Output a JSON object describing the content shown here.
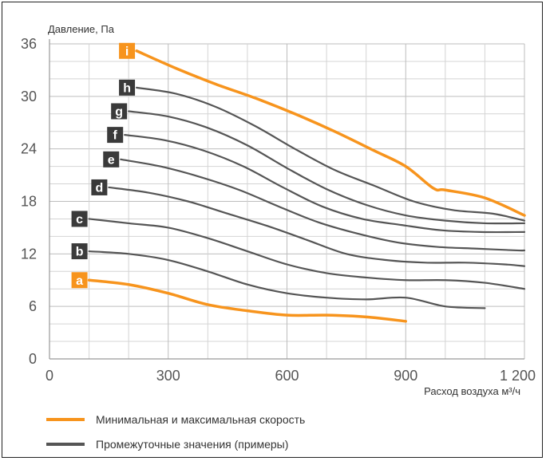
{
  "chart_data": {
    "type": "line",
    "ylabel": "Давление, Па",
    "xlabel": "Расход воздуха м³/ч",
    "xlim": [
      0,
      1200
    ],
    "ylim": [
      0,
      36
    ],
    "x_ticks": [
      0,
      300,
      600,
      900,
      1200
    ],
    "x_tick_labels": [
      "0",
      "300",
      "600",
      "900",
      "1 200"
    ],
    "y_ticks": [
      0,
      6,
      12,
      18,
      24,
      30,
      36
    ],
    "y_tick_labels": [
      "0",
      "6",
      "12",
      "18",
      "24",
      "30",
      "36"
    ],
    "grid": true,
    "legend_position": "bottom-left",
    "colors": {
      "extreme": "#f7941d",
      "intermediate": "#555555"
    },
    "series": [
      {
        "label": "a",
        "kind": "extreme",
        "x": [
          100,
          200,
          300,
          400,
          500,
          600,
          700,
          800,
          900
        ],
        "y": [
          9,
          8.5,
          7.5,
          6.2,
          5.5,
          5.0,
          5.0,
          4.8,
          4.3
        ]
      },
      {
        "label": "b",
        "kind": "intermediate",
        "x": [
          100,
          200,
          300,
          400,
          500,
          600,
          700,
          800,
          900,
          1000,
          1100
        ],
        "y": [
          12.3,
          12.0,
          11.3,
          10.0,
          8.5,
          7.5,
          7.0,
          6.8,
          7.0,
          6.0,
          5.8
        ]
      },
      {
        "label": "c",
        "kind": "intermediate",
        "x": [
          100,
          200,
          300,
          400,
          500,
          600,
          700,
          800,
          900,
          1000,
          1100,
          1200
        ],
        "y": [
          16.0,
          15.5,
          15.0,
          13.8,
          12.3,
          10.8,
          9.8,
          9.3,
          9.0,
          9.0,
          8.7,
          8.0
        ]
      },
      {
        "label": "d",
        "kind": "intermediate",
        "x": [
          150,
          250,
          350,
          450,
          550,
          650,
          750,
          850,
          950,
          1050,
          1150,
          1200
        ],
        "y": [
          19.6,
          19.0,
          18.0,
          16.6,
          15.2,
          13.6,
          12.0,
          11.3,
          11.0,
          11.0,
          10.8,
          10.6
        ]
      },
      {
        "label": "e",
        "kind": "intermediate",
        "x": [
          180,
          280,
          380,
          480,
          580,
          680,
          780,
          880,
          980,
          1080,
          1180,
          1200
        ],
        "y": [
          22.8,
          22.0,
          20.8,
          19.3,
          17.4,
          15.6,
          14.3,
          13.3,
          12.8,
          12.6,
          12.4,
          12.4
        ]
      },
      {
        "label": "f",
        "kind": "intermediate",
        "x": [
          190,
          290,
          390,
          490,
          590,
          690,
          790,
          890,
          990,
          1090,
          1200
        ],
        "y": [
          25.6,
          25.0,
          23.8,
          22.0,
          19.6,
          17.4,
          16.0,
          15.3,
          14.7,
          14.5,
          14.5
        ]
      },
      {
        "label": "g",
        "kind": "intermediate",
        "x": [
          200,
          300,
          400,
          500,
          600,
          700,
          800,
          900,
          1000,
          1100,
          1200
        ],
        "y": [
          28.3,
          27.7,
          26.4,
          24.4,
          21.8,
          19.4,
          17.6,
          16.4,
          15.8,
          15.5,
          15.5
        ]
      },
      {
        "label": "h",
        "kind": "intermediate",
        "x": [
          220,
          320,
          420,
          520,
          620,
          720,
          820,
          920,
          1020,
          1120,
          1200
        ],
        "y": [
          31.0,
          30.3,
          28.8,
          26.6,
          24.0,
          21.6,
          19.8,
          18.0,
          17.0,
          16.6,
          15.8
        ]
      },
      {
        "label": "i",
        "kind": "extreme",
        "x": [
          220,
          320,
          420,
          520,
          620,
          720,
          820,
          900,
          970,
          1000,
          1100,
          1200
        ],
        "y": [
          35.2,
          33.2,
          31.4,
          29.8,
          28.0,
          26.0,
          23.8,
          22.0,
          19.5,
          19.3,
          18.4,
          16.4
        ]
      }
    ]
  },
  "legend": {
    "extreme_label": "Минимальная и максимальная скорость",
    "intermediate_label": "Промежуточные значения (примеры)"
  }
}
